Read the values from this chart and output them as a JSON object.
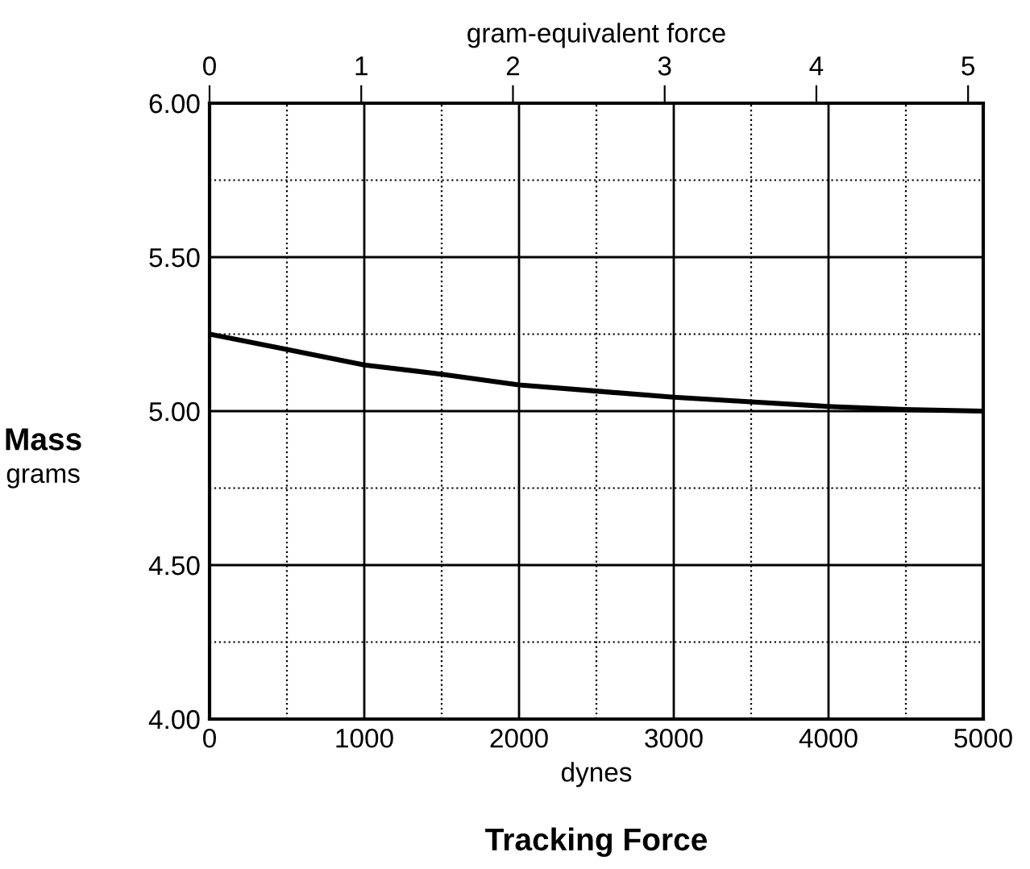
{
  "chart_data": {
    "type": "line",
    "xlabel": "dynes",
    "ylabel": "Mass",
    "x2label": "gram-equivalent force",
    "annotations": [
      "grams",
      "Tracking Force"
    ],
    "x": [
      0,
      500,
      1000,
      1500,
      2000,
      2500,
      3000,
      3500,
      4000,
      4500,
      5000
    ],
    "series": [
      {
        "color": "#000000",
        "values": [
          5.25,
          5.2,
          5.15,
          5.12,
          5.085,
          5.065,
          5.045,
          5.03,
          5.015,
          5.005,
          5.0
        ]
      }
    ],
    "xlim": [
      0,
      5000
    ],
    "ylim": [
      4.0,
      6.0
    ],
    "x2lim": [
      0,
      5.1
    ],
    "xticks": [
      0,
      {
        "value": 500,
        "label": null
      },
      1000,
      {
        "value": 1500,
        "label": null
      },
      2000,
      {
        "value": 2500,
        "label": null
      },
      3000,
      {
        "value": 3500,
        "label": null
      },
      4000,
      {
        "value": 4500,
        "label": null
      },
      5000
    ],
    "yticks": [
      {
        "value": 4.0,
        "label": "4.00"
      },
      {
        "value": 4.25,
        "label": null
      },
      {
        "value": 4.5,
        "label": "4.50"
      },
      {
        "value": 4.75,
        "label": null
      },
      {
        "value": 5.0,
        "label": "5.00"
      },
      {
        "value": 5.25,
        "label": null
      },
      {
        "value": 5.5,
        "label": "5.50"
      },
      {
        "value": 5.75,
        "label": null
      },
      {
        "value": 6.0,
        "label": "6.00"
      }
    ],
    "x2ticks": [
      0,
      1,
      2,
      3,
      4,
      5
    ],
    "grid": true,
    "marker": "none",
    "line_style": "solid"
  }
}
